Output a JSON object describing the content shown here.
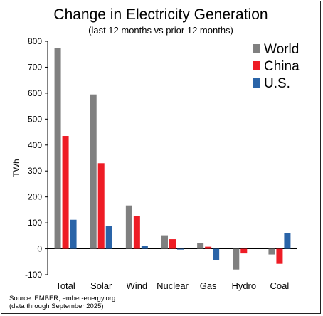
{
  "chart_data": {
    "type": "bar",
    "title": "Change in Electricity Generation",
    "subtitle": "(last 12 months vs prior 12 months)",
    "ylabel": "TWh",
    "xlabel": "",
    "ylim": [
      -100,
      800
    ],
    "yticks": [
      -100,
      0,
      100,
      200,
      300,
      400,
      500,
      600,
      700,
      800
    ],
    "categories": [
      "Total",
      "Solar",
      "Wind",
      "Nuclear",
      "Gas",
      "Hydro",
      "Coal"
    ],
    "series": [
      {
        "name": "World",
        "color": "#808080",
        "values": [
          775,
          595,
          167,
          52,
          22,
          -80,
          -22
        ]
      },
      {
        "name": "China",
        "color": "#ee1c25",
        "values": [
          435,
          330,
          125,
          37,
          8,
          -18,
          -58
        ]
      },
      {
        "name": "U.S.",
        "color": "#2a64a8",
        "values": [
          112,
          87,
          12,
          -3,
          -45,
          0,
          60
        ]
      }
    ],
    "legend_position": "top-right",
    "grid": false
  },
  "source": {
    "line1": "Source: EMBER, ember-energy.org",
    "line2": "(data through September 2025)"
  }
}
